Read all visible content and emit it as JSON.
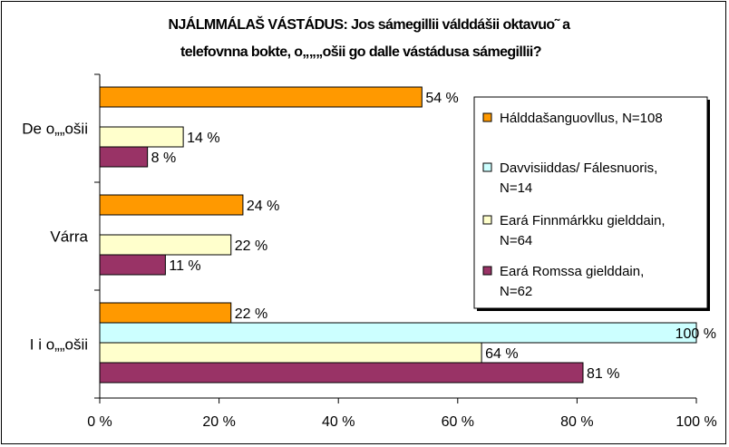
{
  "chart_data": {
    "type": "bar",
    "orientation": "horizontal",
    "title": [
      "NJÁLMMÁLAŠ VÁSTÁDUS:   Jos sámegillii válddášii oktavuo˜ a",
      "telefovnna bokte, o„„„ošii go dalle vástádusa sámegillii?"
    ],
    "categories": [
      "De o„„ošii",
      "Várra",
      "I i o„„ošii"
    ],
    "series": [
      {
        "name": "Hálddašanguovllus, N=108",
        "color": "#ff9900",
        "values": [
          54,
          24,
          22
        ]
      },
      {
        "name": "Davvisiiddas/ Fálesnuoris, N=14",
        "color": "#ccffff",
        "values": [
          null,
          null,
          100
        ]
      },
      {
        "name": "Eará Finnmárkku gielddain, N=64",
        "color": "#ffffcc",
        "values": [
          14,
          22,
          64
        ]
      },
      {
        "name": "Eará Romssa gielddain, N=62",
        "color": "#993366",
        "values": [
          8,
          11,
          81
        ]
      }
    ],
    "data_labels": [
      [
        "54 %",
        "24 %",
        "22 %"
      ],
      [
        "",
        "",
        "100 %"
      ],
      [
        "14 %",
        "22 %",
        "64 %"
      ],
      [
        "8 %",
        "11 %",
        "81 %"
      ]
    ],
    "xticks": [
      "0 %",
      "20 %",
      "40 %",
      "60 %",
      "80 %",
      "100 %"
    ],
    "xlim": [
      0,
      100
    ],
    "xlabel": "",
    "ylabel": "",
    "grid": false,
    "legend": {
      "position": "right",
      "entries": [
        [
          "Hálddašanguovllus, N=108"
        ],
        [
          "Davvisiiddas/ Fálesnuoris,",
          "N=14"
        ],
        [
          "Eará Finnmárkku gielddain,",
          "N=64"
        ],
        [
          "Eará Romssa gielddain,",
          "N=62"
        ]
      ]
    }
  }
}
